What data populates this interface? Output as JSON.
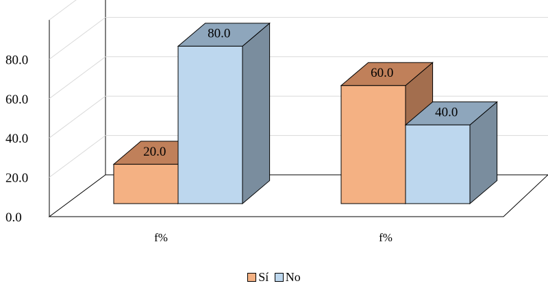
{
  "chart_data": {
    "type": "bar",
    "categories": [
      "f%",
      "f%"
    ],
    "series": [
      {
        "name": "Sí",
        "values": [
          20.0,
          60.0
        ],
        "color": "#F4B183",
        "top_color": "#C0805A",
        "side_color": "#A36E4E"
      },
      {
        "name": "No",
        "values": [
          80.0,
          40.0
        ],
        "color": "#BDD7EE",
        "top_color": "#8EA6BC",
        "side_color": "#7A8D9E"
      }
    ],
    "y_ticks": [
      "0.0",
      "20.0",
      "40.0",
      "60.0",
      "80.0"
    ],
    "ylim": [
      0,
      100
    ],
    "grid": true,
    "legend_position": "bottom",
    "three_d": true
  }
}
